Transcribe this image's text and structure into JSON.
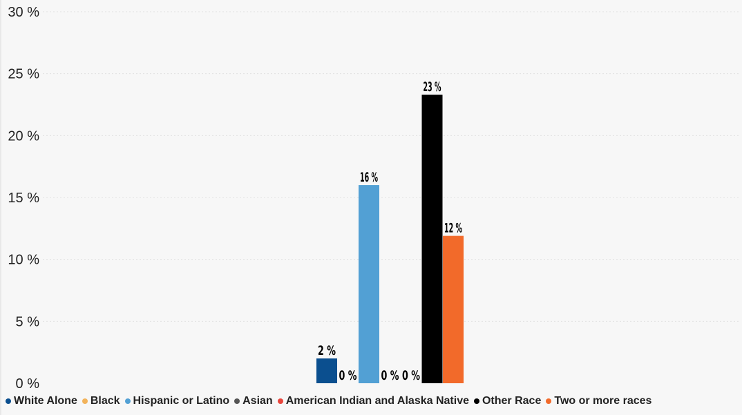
{
  "chart_data": {
    "type": "bar",
    "ylim": [
      0,
      30
    ],
    "yticks": [
      0,
      5,
      10,
      15,
      20,
      25,
      30
    ],
    "ytick_labels": [
      "0 %",
      "5 %",
      "10 %",
      "15 %",
      "20 %",
      "25 %",
      "30 %"
    ],
    "grid": true,
    "legend_position": "bottom",
    "series": [
      {
        "name": "White Alone",
        "value": 2,
        "label": "2 %",
        "color": "#0b4f8f"
      },
      {
        "name": "Black",
        "value": 0,
        "label": "0 %",
        "color": "#f2b35b"
      },
      {
        "name": "Hispanic or Latino",
        "value": 16,
        "label": "16 %",
        "color": "#52a0d4"
      },
      {
        "name": "Asian",
        "value": 0,
        "label": "0 %",
        "color": "#555555"
      },
      {
        "name": "American Indian and Alaska Native",
        "value": 0,
        "label": "0 %",
        "color": "#e8453c"
      },
      {
        "name": "Other Race",
        "value": 23.3,
        "label": "23 %",
        "color": "#000000"
      },
      {
        "name": "Two or more races",
        "value": 11.9,
        "label": "12 %",
        "color": "#f26a2a"
      }
    ]
  }
}
